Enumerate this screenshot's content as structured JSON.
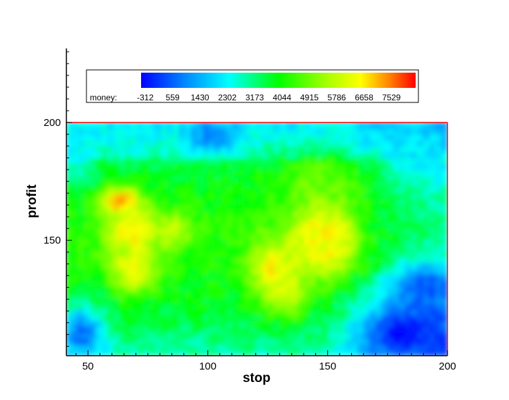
{
  "chart_data": {
    "type": "heatmap",
    "title": "",
    "xlabel": "stop",
    "ylabel": "profit",
    "xlim": [
      41,
      200
    ],
    "ylim": [
      101,
      200
    ],
    "ylim_axis_extends_to": 232,
    "x_ticks": [
      50,
      100,
      150,
      200
    ],
    "y_ticks": [
      150,
      200
    ],
    "color_scale": {
      "variable": "money",
      "label": "money:",
      "levels": [
        "-312",
        "559",
        "1430",
        "2302",
        "3173",
        "4044",
        "4915",
        "5786",
        "6658",
        "7529"
      ],
      "min": -312,
      "max": 8400,
      "colors": [
        "#0000ff",
        "#0088ff",
        "#00ffff",
        "#00ff00",
        "#ffff00",
        "#ff8800",
        "#ff0000"
      ]
    },
    "border_color": "#ff0000",
    "features": [
      {
        "x": [
          58,
          70
        ],
        "y": [
          163,
          170
        ],
        "value": 7800
      },
      {
        "x": [
          60,
          78
        ],
        "y": [
          145,
          162
        ],
        "value": 6800
      },
      {
        "x": [
          62,
          76
        ],
        "y": [
          130,
          145
        ],
        "value": 6500
      },
      {
        "x": [
          80,
          92
        ],
        "y": [
          150,
          160
        ],
        "value": 6000
      },
      {
        "x": [
          120,
          135
        ],
        "y": [
          125,
          150
        ],
        "value": 6700
      },
      {
        "x": [
          130,
          138
        ],
        "y": [
          120,
          138
        ],
        "value": 6200
      },
      {
        "x": [
          140,
          158
        ],
        "y": [
          145,
          162
        ],
        "value": 8000
      },
      {
        "x": [
          138,
          160
        ],
        "y": [
          135,
          160
        ],
        "value": 6500
      },
      {
        "x": [
          145,
          152
        ],
        "y": [
          162,
          168
        ],
        "value": 6800
      },
      {
        "x": [
          130,
          165
        ],
        "y": [
          162,
          185
        ],
        "value": 5000
      },
      {
        "x": [
          165,
          200
        ],
        "y": [
          101,
          120
        ],
        "value": -200
      },
      {
        "x": [
          180,
          200
        ],
        "y": [
          120,
          140
        ],
        "value": 500
      },
      {
        "x": [
          41,
          55
        ],
        "y": [
          101,
          120
        ],
        "value": 800
      },
      {
        "x": [
          95,
          110
        ],
        "y": [
          190,
          200
        ],
        "value": 1000
      },
      {
        "x": [
          180,
          200
        ],
        "y": [
          175,
          200
        ],
        "value": 2200
      },
      {
        "x": [
          41,
          50
        ],
        "y": [
          175,
          200
        ],
        "value": 2400
      }
    ]
  }
}
